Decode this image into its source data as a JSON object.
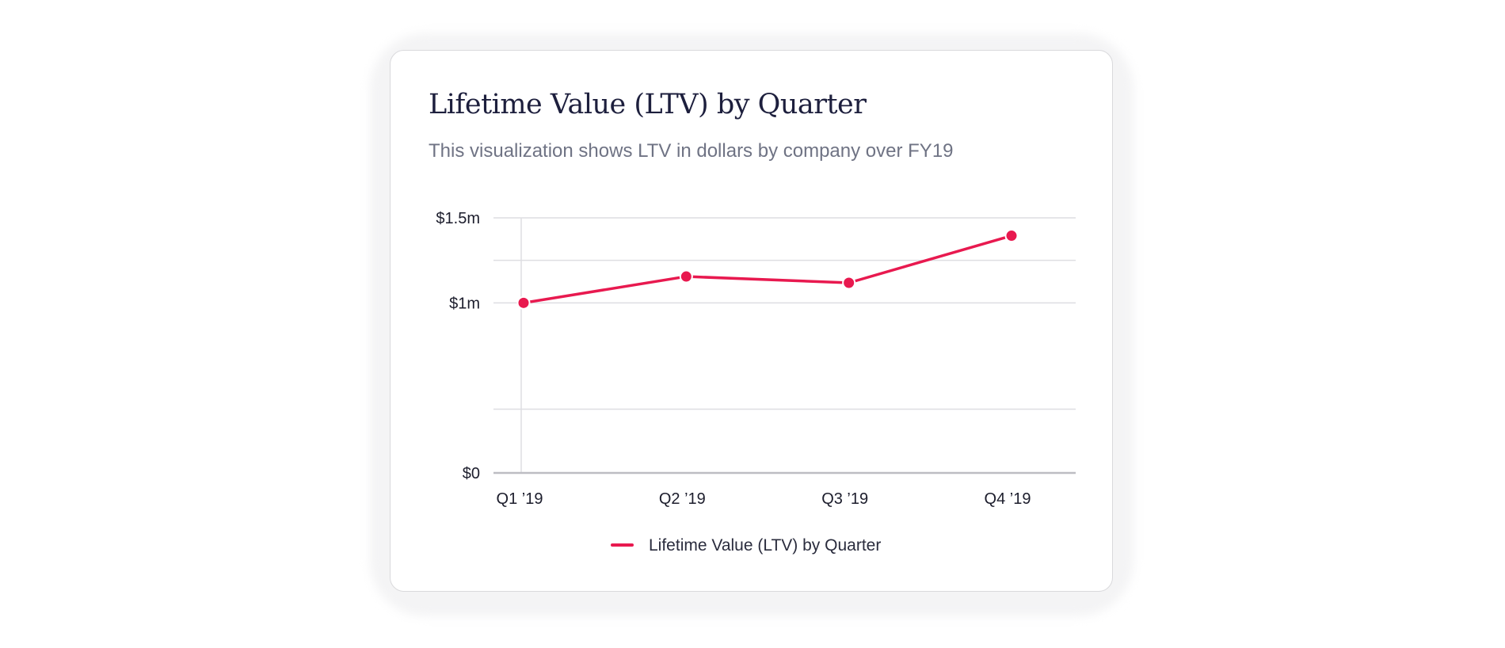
{
  "colors": {
    "series": "#e8194f",
    "grid": "#dedee2",
    "axis": "#bdbdc3",
    "title": "#1d1f3d",
    "subtitle": "#6f7384"
  },
  "chart_data": {
    "type": "line",
    "title": "Lifetime Value (LTV) by Quarter",
    "subtitle": "This visualization shows LTV in dollars by company over FY19",
    "categories": [
      "Q1 ’19",
      "Q2 ’19",
      "Q3 ’19",
      "Q4 ’19"
    ],
    "series": [
      {
        "name": "Lifetime Value (LTV) by Quarter",
        "values": [
          1000000,
          1155000,
          1118000,
          1395000
        ]
      }
    ],
    "ylim": [
      0,
      1500000
    ],
    "yticks": [
      {
        "value": 0,
        "label": "$0"
      },
      {
        "value": 375000,
        "label": ""
      },
      {
        "value": 1000000,
        "label": "$1m"
      },
      {
        "value": 1250000,
        "label": ""
      },
      {
        "value": 1500000,
        "label": "$1.5m"
      }
    ],
    "xlabel": "",
    "ylabel": "",
    "grid": true,
    "legend": "bottom-center"
  }
}
